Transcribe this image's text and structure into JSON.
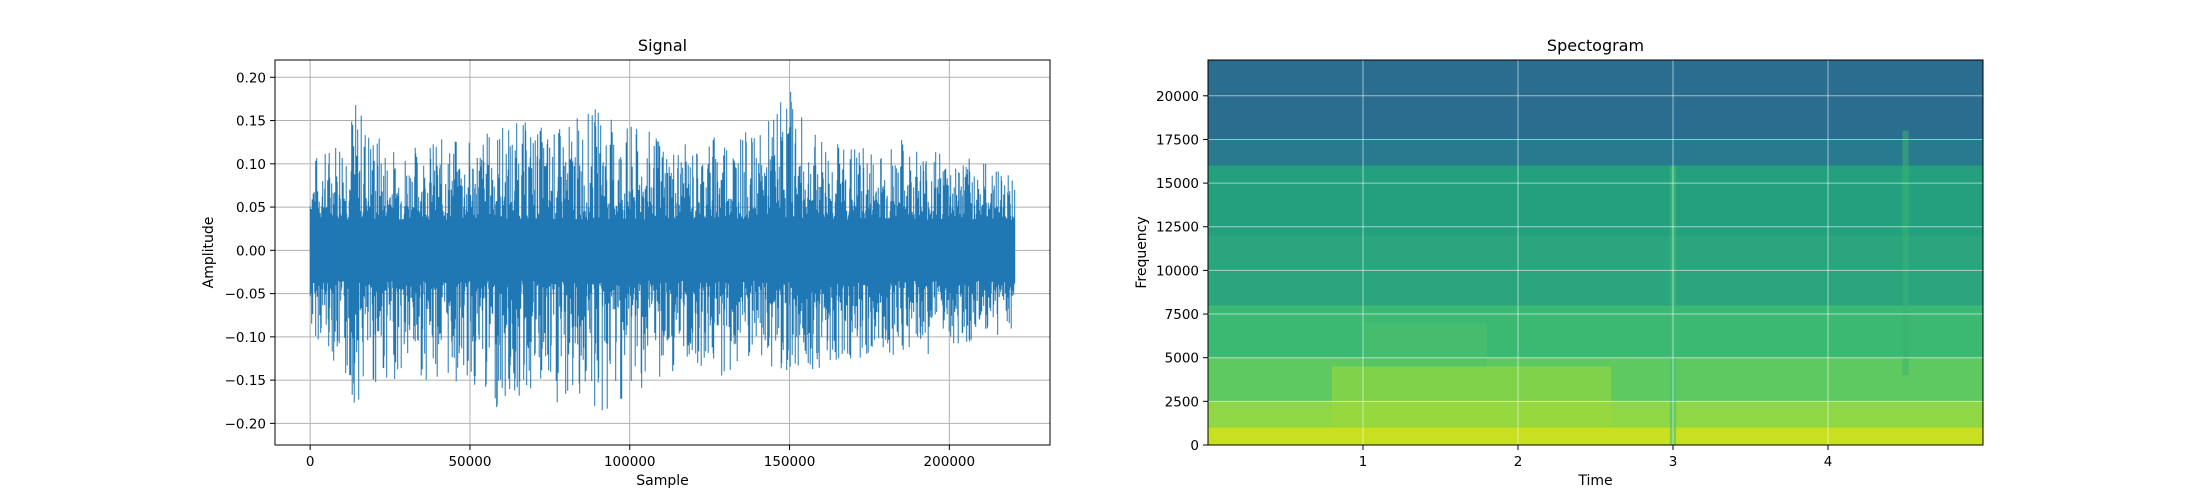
{
  "chart_data": [
    {
      "type": "line",
      "title": "Signal",
      "xlabel": "Sample",
      "ylabel": "Amplitude",
      "xlim": [
        -11000,
        231500
      ],
      "ylim": [
        -0.225,
        0.22
      ],
      "x_ticks": [
        0,
        50000,
        100000,
        150000,
        200000
      ],
      "x_tick_labels": [
        "0",
        "50000",
        "100000",
        "150000",
        "200000"
      ],
      "y_ticks": [
        -0.2,
        -0.15,
        -0.1,
        -0.05,
        0.0,
        0.05,
        0.1,
        0.15,
        0.2
      ],
      "y_tick_labels": [
        "−0.20",
        "−0.15",
        "−0.10",
        "−0.05",
        "0.00",
        "0.05",
        "0.10",
        "0.15",
        "0.20"
      ],
      "grid": true,
      "color": "#1f77b4",
      "n_samples": 220500,
      "series": [
        {
          "x": [
            0,
            5000,
            13500,
            25000,
            40000,
            50000,
            60000,
            70000,
            76500,
            85000,
            91500,
            95000,
            105000,
            112000,
            119500,
            130000,
            140000,
            150000,
            155000,
            165000,
            175000,
            185000,
            195000,
            205000,
            215000,
            220500
          ],
          "max": [
            0.11,
            0.12,
            0.18,
            0.12,
            0.13,
            0.13,
            0.15,
            0.15,
            0.14,
            0.16,
            0.17,
            0.15,
            0.14,
            0.13,
            0.12,
            0.15,
            0.13,
            0.2,
            0.14,
            0.13,
            0.12,
            0.13,
            0.12,
            0.11,
            0.1,
            0.09
          ],
          "min": [
            -0.1,
            -0.11,
            -0.18,
            -0.15,
            -0.15,
            -0.16,
            -0.19,
            -0.17,
            -0.2,
            -0.17,
            -0.21,
            -0.18,
            -0.16,
            -0.15,
            -0.13,
            -0.15,
            -0.14,
            -0.14,
            -0.14,
            -0.13,
            -0.13,
            -0.12,
            -0.12,
            -0.11,
            -0.1,
            -0.09
          ]
        }
      ]
    },
    {
      "type": "heatmap",
      "title": "Spectogram",
      "xlabel": "Time",
      "ylabel": "Frequency",
      "xlim": [
        0,
        5
      ],
      "ylim": [
        0,
        22050
      ],
      "x_ticks": [
        1,
        2,
        3,
        4
      ],
      "x_tick_labels": [
        "1",
        "2",
        "3",
        "4"
      ],
      "y_ticks": [
        0,
        2500,
        5000,
        7500,
        10000,
        12500,
        15000,
        17500,
        20000
      ],
      "y_tick_labels": [
        "0",
        "2500",
        "5000",
        "7500",
        "10000",
        "12500",
        "15000",
        "17500",
        "20000"
      ],
      "grid": true,
      "colormap": "viridis",
      "bands": [
        {
          "freq": [
            0,
            1000
          ],
          "color": "#c8e020"
        },
        {
          "freq": [
            1000,
            2500
          ],
          "color": "#8fd744"
        },
        {
          "freq": [
            2500,
            5000
          ],
          "color": "#5ec962"
        },
        {
          "freq": [
            5000,
            8000
          ],
          "color": "#3bb974"
        },
        {
          "freq": [
            8000,
            12000
          ],
          "color": "#2ca57f"
        },
        {
          "freq": [
            12000,
            16000
          ],
          "color": "#24a07f"
        },
        {
          "freq": [
            16000,
            17500
          ],
          "color": "#287c8e"
        },
        {
          "freq": [
            17500,
            22050
          ],
          "color": "#2b6e8e"
        }
      ],
      "highlights": [
        {
          "time": [
            0.8,
            2.6
          ],
          "freq": [
            1000,
            4500
          ],
          "color": "#9cd93b"
        },
        {
          "time": [
            1.0,
            1.8
          ],
          "freq": [
            4500,
            7000
          ],
          "color": "#4fbf6a"
        },
        {
          "time": [
            2.98,
            3.02
          ],
          "freq": [
            0,
            16000
          ],
          "color": "#3fbc73"
        },
        {
          "time": [
            4.48,
            4.52
          ],
          "freq": [
            4000,
            18000
          ],
          "color": "#3bb370"
        }
      ]
    }
  ]
}
